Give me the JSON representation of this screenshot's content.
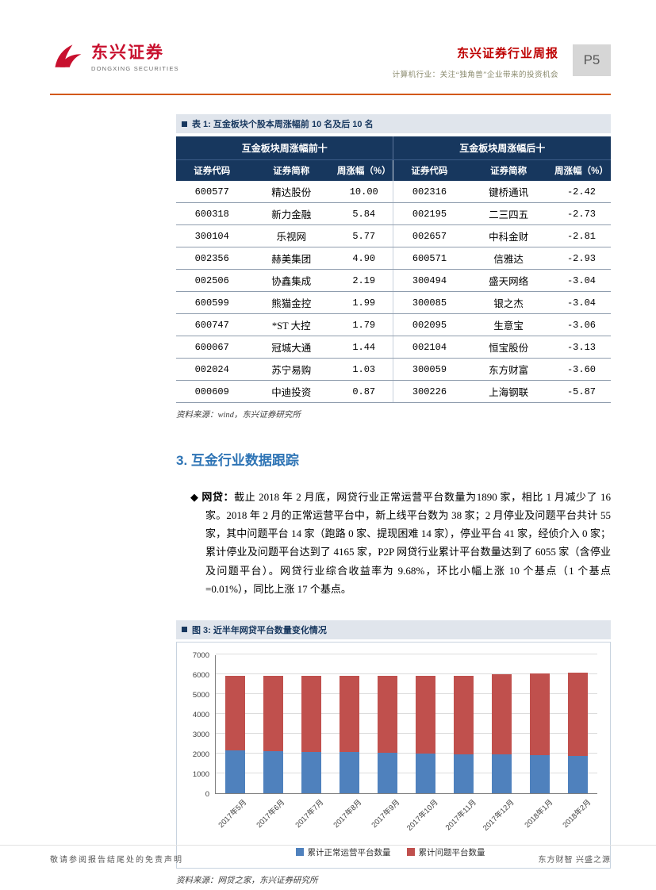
{
  "header": {
    "brand_cn": "东兴证券",
    "brand_en": "DONGXING SECURITIES",
    "report_title": "东兴证券行业周报",
    "report_subtitle": "计算机行业：关注“独角兽”企业带来的投资机会",
    "page_number": "P5"
  },
  "table1": {
    "caption": "表 1: 互金板块个股本周涨幅前 10 名及后 10 名",
    "group_headers": [
      "互金板块周涨幅前十",
      "互金板块周涨幅后十"
    ],
    "columns": [
      "证券代码",
      "证券简称",
      "周涨幅（%）",
      "证券代码",
      "证券简称",
      "周涨幅（%）"
    ],
    "left_rows": [
      [
        "600577",
        "精达股份",
        "10.00"
      ],
      [
        "600318",
        "新力金融",
        "5.84"
      ],
      [
        "300104",
        "乐视网",
        "5.77"
      ],
      [
        "002356",
        "赫美集团",
        "4.90"
      ],
      [
        "002506",
        "协鑫集成",
        "2.19"
      ],
      [
        "600599",
        "熊猫金控",
        "1.99"
      ],
      [
        "600747",
        "*ST 大控",
        "1.79"
      ],
      [
        "600067",
        "冠城大通",
        "1.44"
      ],
      [
        "002024",
        "苏宁易购",
        "1.03"
      ],
      [
        "000609",
        "中迪投资",
        "0.87"
      ]
    ],
    "right_rows": [
      [
        "002316",
        "键桥通讯",
        "-2.42"
      ],
      [
        "002195",
        "二三四五",
        "-2.73"
      ],
      [
        "002657",
        "中科金财",
        "-2.81"
      ],
      [
        "600571",
        "信雅达",
        "-2.93"
      ],
      [
        "300494",
        "盛天网络",
        "-3.04"
      ],
      [
        "300085",
        "银之杰",
        "-3.04"
      ],
      [
        "002095",
        "生意宝",
        "-3.06"
      ],
      [
        "002104",
        "恒宝股份",
        "-3.13"
      ],
      [
        "300059",
        "东方财富",
        "-3.60"
      ],
      [
        "300226",
        "上海钢联",
        "-5.87"
      ]
    ],
    "source": "资料来源：wind，东兴证券研究所"
  },
  "section": {
    "title": "3. 互金行业数据跟踪"
  },
  "paragraph": {
    "bullet": "◆",
    "label": "网贷：",
    "text": "截止 2018 年 2 月底，网贷行业正常运营平台数量为1890 家，相比 1 月减少了 16 家。2018 年 2 月的正常运营平台中，新上线平台数为 38 家；2 月停业及问题平台共计 55 家，其中问题平台 14 家（跑路 0 家、提现困难 14 家），停业平台 41 家，经侦介入 0 家；累计停业及问题平台达到了 4165 家，P2P 网贷行业累计平台数量达到了 6055 家（含停业及问题平台）。网贷行业综合收益率为 9.68%，环比小幅上涨 10 个基点（1 个基点=0.01%），同比上涨 17 个基点。"
  },
  "chart": {
    "caption": "图 3: 近半年网贷平台数量变化情况",
    "source": "资料来源：网贷之家，东兴证券研究所"
  },
  "chart_data": {
    "type": "bar",
    "stacked": true,
    "title": "近半年网贷平台数量变化情况",
    "categories": [
      "2017年5月",
      "2017年6月",
      "2017年7月",
      "2017年8月",
      "2017年9月",
      "2017年10月",
      "2017年11月",
      "2017年12月",
      "2018年1月",
      "2018年2月"
    ],
    "series": [
      {
        "name": "累计正常运营平台数量",
        "color": "#4F81BD",
        "values": [
          2148,
          2114,
          2090,
          2065,
          2025,
          1975,
          1954,
          1931,
          1906,
          1890
        ]
      },
      {
        "name": "累计问题平台数量",
        "color": "#C0504D",
        "values": [
          3760,
          3790,
          3815,
          3845,
          3875,
          3925,
          3970,
          4040,
          4110,
          4165
        ]
      }
    ],
    "ylim": [
      0,
      7000
    ],
    "ytick": 1000,
    "grid": true,
    "legend_position": "bottom"
  },
  "footer": {
    "left": "敬请参阅报告结尾处的免责声明",
    "right": "东方财智 兴盛之源"
  }
}
